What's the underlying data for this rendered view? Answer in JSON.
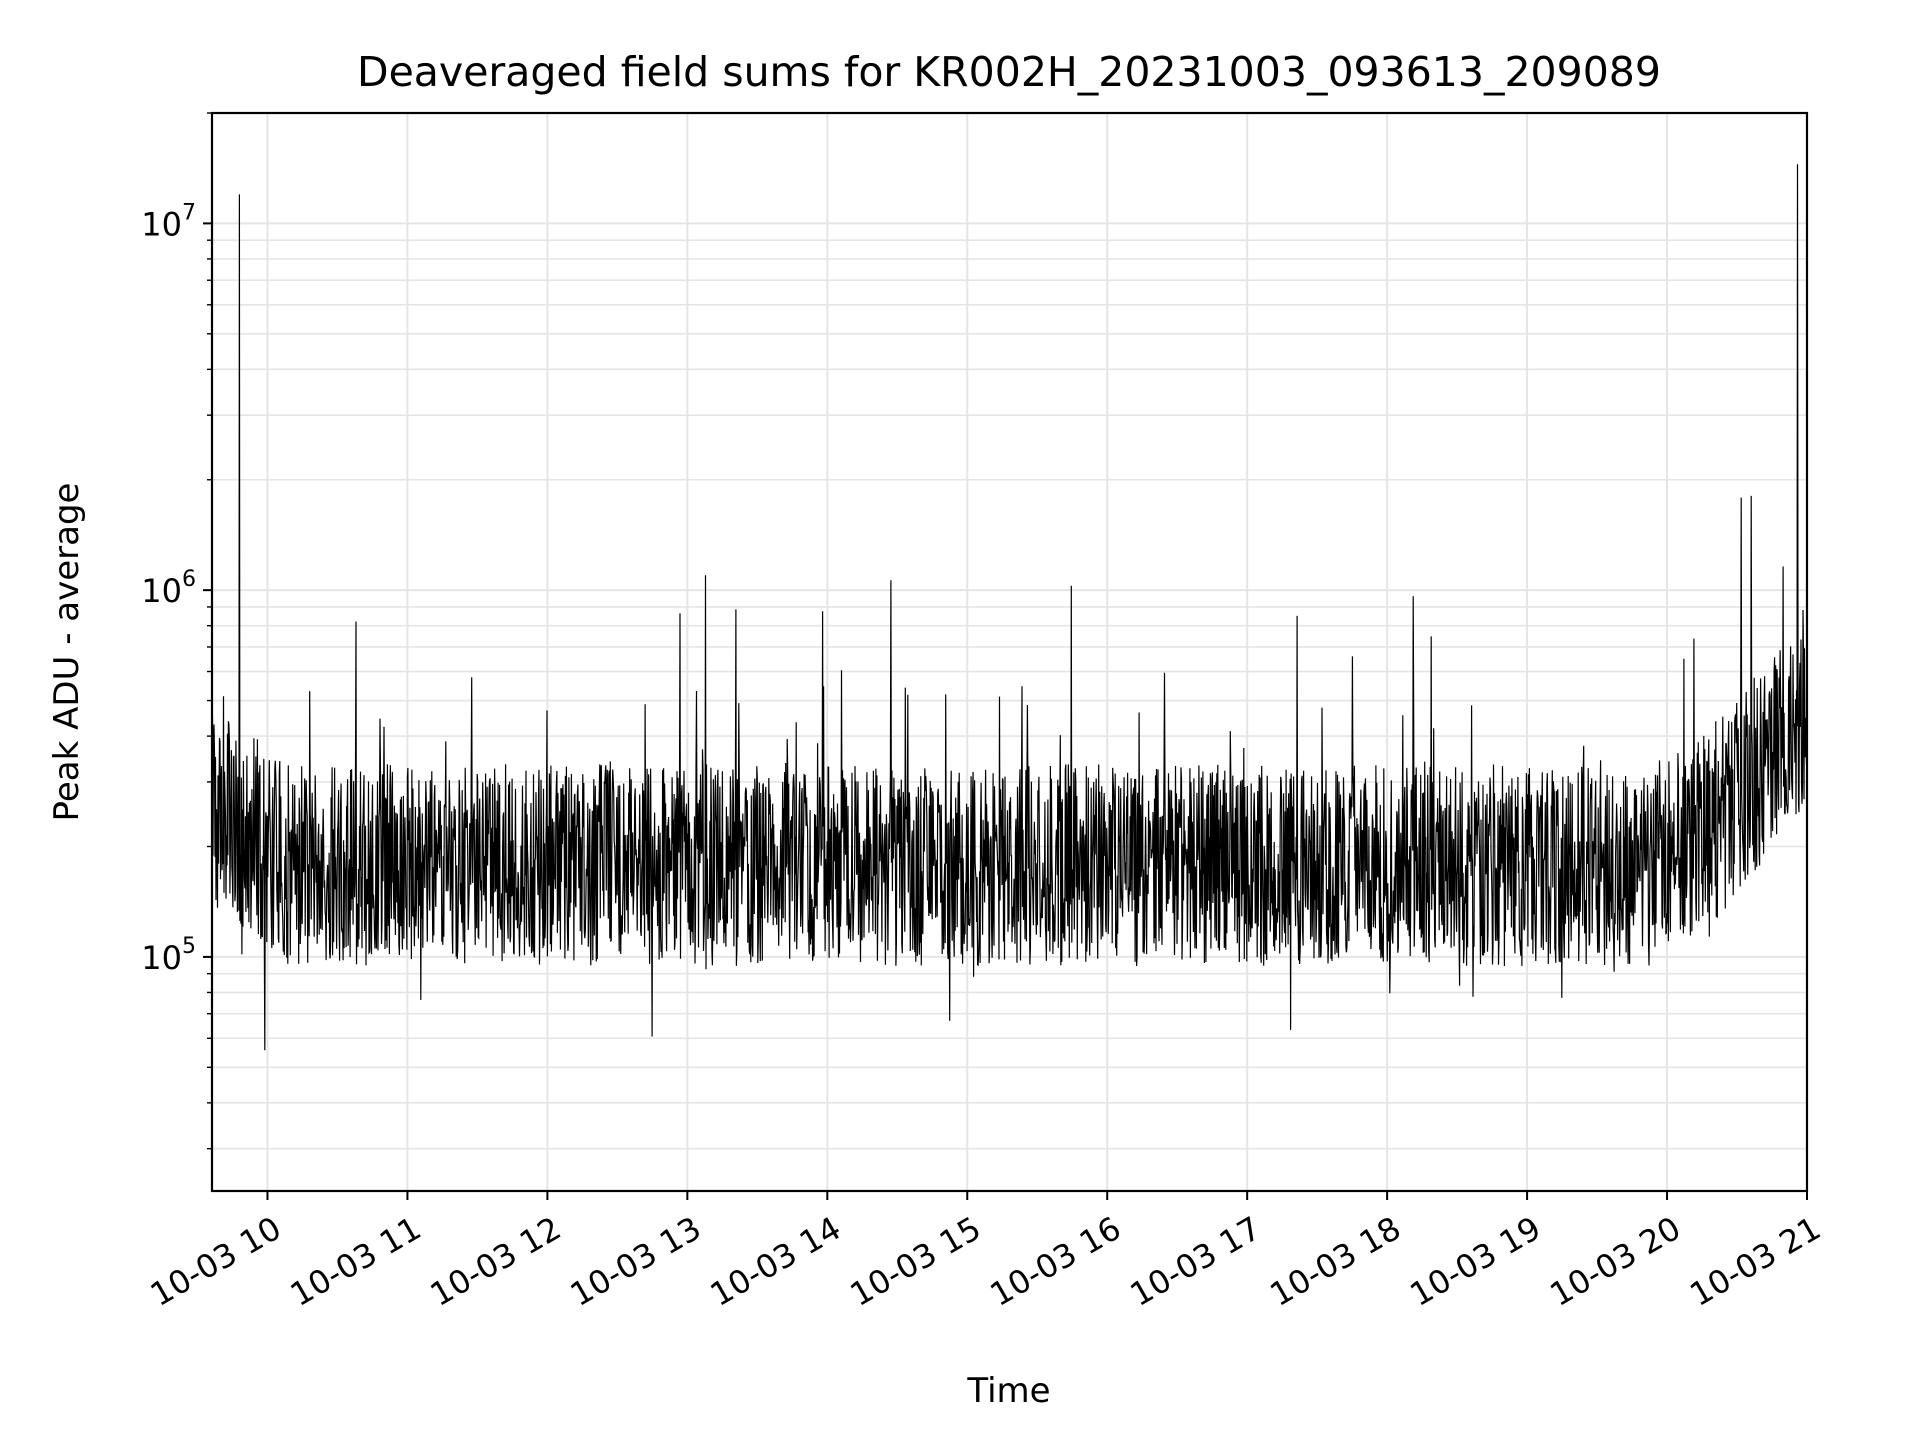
{
  "chart_data": {
    "type": "line",
    "title": "Deaveraged field sums for KR002H_20231003_093613_209089",
    "xlabel": "Time",
    "ylabel": "Peak ADU - average",
    "yscale": "log",
    "ylim": [
      23000,
      20000000
    ],
    "xlim": [
      "2023-10-03 09:36:13",
      "2023-10-03 21:00:00"
    ],
    "grid": true,
    "line_color": "#000000",
    "grid_color": "#e5e5e5",
    "x_tick_labels": [
      "10-03 10",
      "10-03 11",
      "10-03 12",
      "10-03 13",
      "10-03 14",
      "10-03 15",
      "10-03 16",
      "10-03 17",
      "10-03 18",
      "10-03 19",
      "10-03 20",
      "10-03 21"
    ],
    "y_tick_labels": [
      {
        "value": 100000,
        "base": "10",
        "exp": "5"
      },
      {
        "value": 1000000,
        "base": "10",
        "exp": "6"
      },
      {
        "value": 10000000,
        "base": "10",
        "exp": "7"
      }
    ],
    "series": [
      {
        "x": [
          "2023-10-03 09:36",
          "2023-10-03 09:48",
          "2023-10-03 09:59",
          "2023-10-03 10:30",
          "2023-10-03 11:00",
          "2023-10-03 11:30",
          "2023-10-03 12:00",
          "2023-10-03 12:30",
          "2023-10-03 13:00",
          "2023-10-03 13:30",
          "2023-10-03 14:00",
          "2023-10-03 14:30",
          "2023-10-03 15:00",
          "2023-10-03 15:30",
          "2023-10-03 16:00",
          "2023-10-03 16:30",
          "2023-10-03 17:00",
          "2023-10-03 17:30",
          "2023-10-03 18:00",
          "2023-10-03 18:30",
          "2023-10-03 19:00",
          "2023-10-03 19:30",
          "2023-10-03 20:00",
          "2023-10-03 20:30",
          "2023-10-03 20:56",
          "2023-10-03 21:00"
        ],
        "y": [
          300000,
          12000000,
          230000,
          180000,
          170000,
          165000,
          175000,
          175000,
          170000,
          175000,
          180000,
          175000,
          180000,
          185000,
          190000,
          185000,
          180000,
          175000,
          170000,
          165000,
          160000,
          175000,
          210000,
          380000,
          14500000,
          520000
        ]
      }
    ]
  }
}
